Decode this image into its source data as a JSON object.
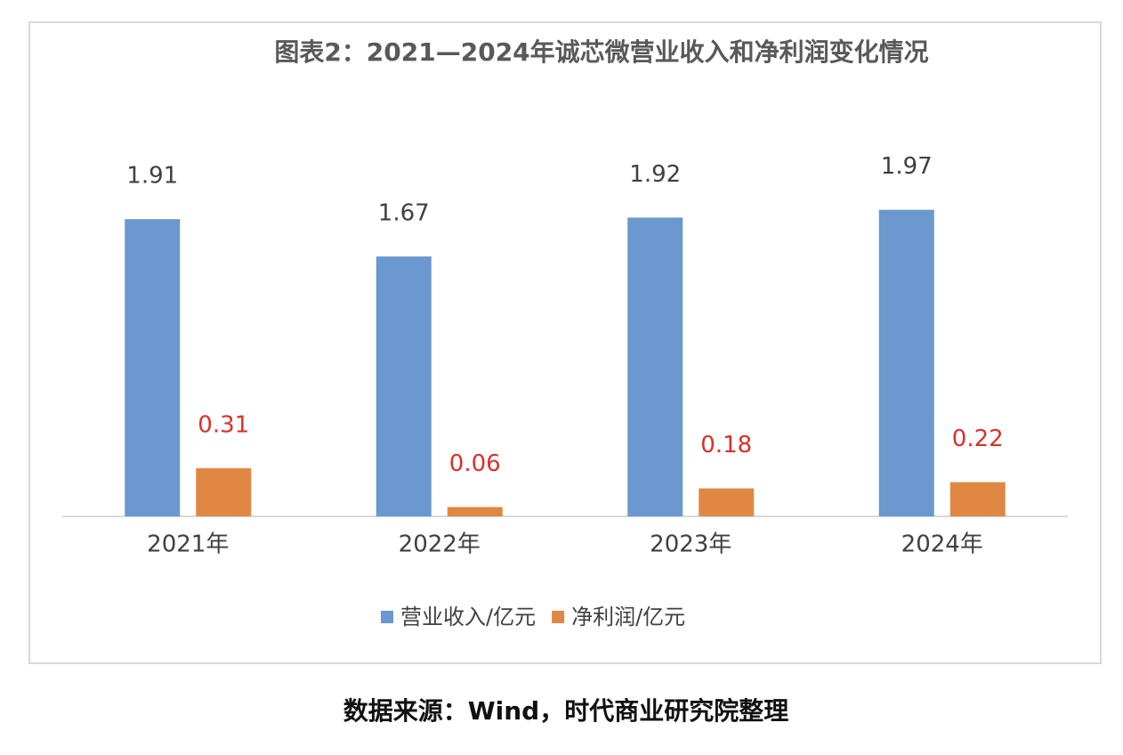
{
  "chart_data": {
    "type": "bar",
    "title": "图表2：2021—2024年诚芯微营业收入和净利润变化情况",
    "categories": [
      "2021年",
      "2022年",
      "2023年",
      "2024年"
    ],
    "series": [
      {
        "name": "营业收入/亿元",
        "color": "#6a98cf",
        "label_color": "#404040",
        "values": [
          1.91,
          1.67,
          1.92,
          1.97
        ]
      },
      {
        "name": "净利润/亿元",
        "color": "#e08843",
        "label_color": "#d9312b",
        "values": [
          0.31,
          0.06,
          0.18,
          0.22
        ]
      }
    ],
    "ylim": [
      0,
      2.5
    ],
    "legend": "bottom",
    "source": "数据来源：Wind，时代商业研究院整理"
  }
}
